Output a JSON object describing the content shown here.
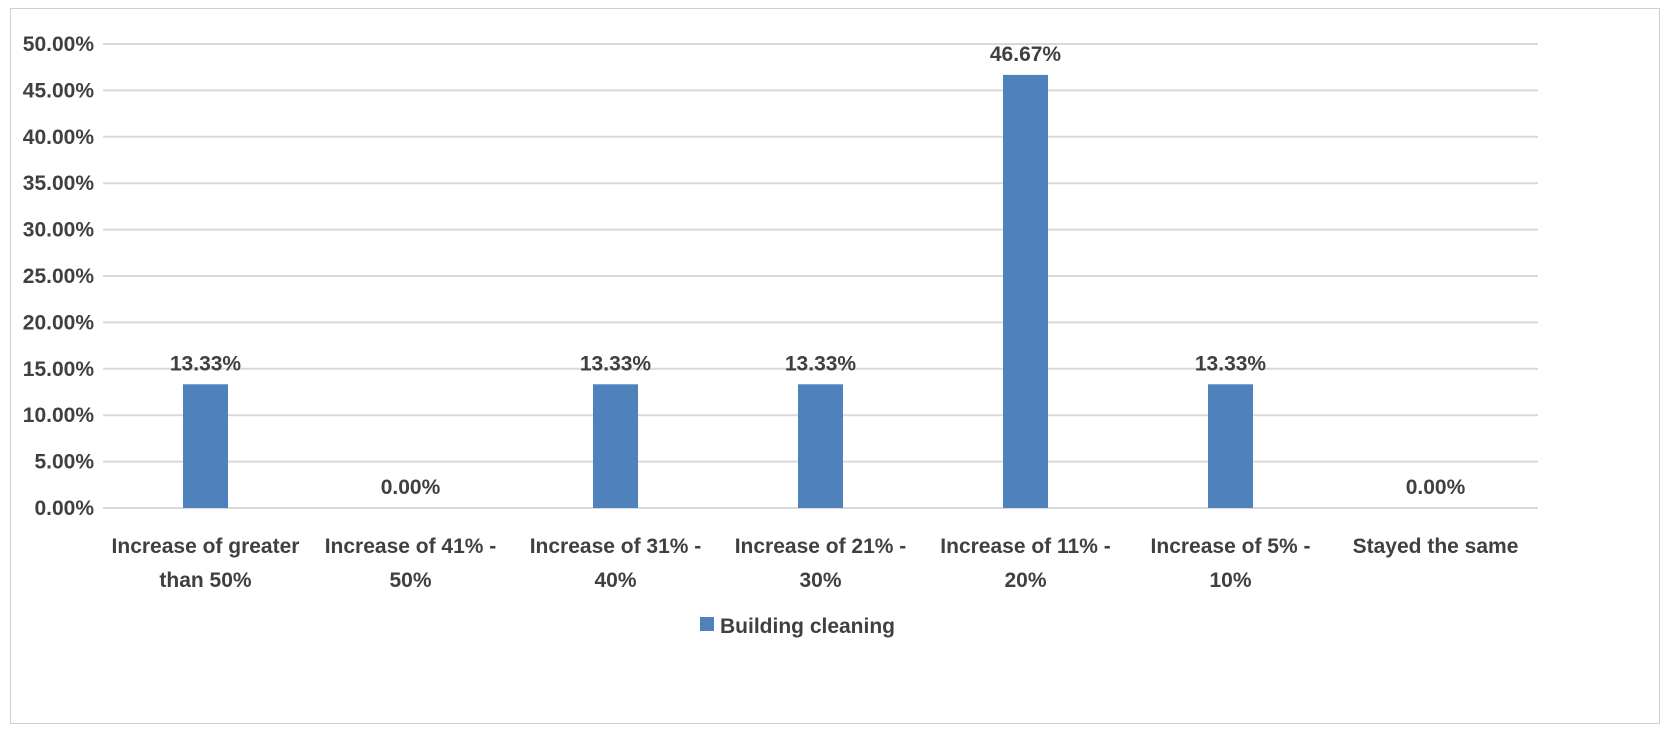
{
  "chart_data": {
    "type": "bar",
    "title": "",
    "xlabel": "",
    "ylabel": "",
    "categories": [
      [
        "Increase of greater",
        "than 50%"
      ],
      [
        "Increase of 41% -",
        "50%"
      ],
      [
        "Increase of 31% -",
        "40%"
      ],
      [
        "Increase of 21% -",
        "30%"
      ],
      [
        "Increase of 11% -",
        "20%"
      ],
      [
        "Increase of 5% -",
        "10%"
      ],
      [
        "Stayed the same"
      ]
    ],
    "series": [
      {
        "name": "Building cleaning",
        "color": "#4f81bd",
        "values": [
          13.33,
          0.0,
          13.33,
          13.33,
          46.67,
          13.33,
          0.0
        ],
        "data_labels": [
          "13.33%",
          "0.00%",
          "13.33%",
          "13.33%",
          "46.67%",
          "13.33%",
          "0.00%"
        ]
      }
    ],
    "ylim": [
      0,
      50
    ],
    "yticks": [
      0,
      5,
      10,
      15,
      20,
      25,
      30,
      35,
      40,
      45,
      50
    ],
    "ytick_labels": [
      "0.00%",
      "5.00%",
      "10.00%",
      "15.00%",
      "20.00%",
      "25.00%",
      "30.00%",
      "35.00%",
      "40.00%",
      "45.00%",
      "50.00%"
    ],
    "grid": true,
    "gridline_color": "#d9d9d9",
    "legend": {
      "position": "bottom",
      "entries": [
        "Building cleaning"
      ]
    }
  }
}
